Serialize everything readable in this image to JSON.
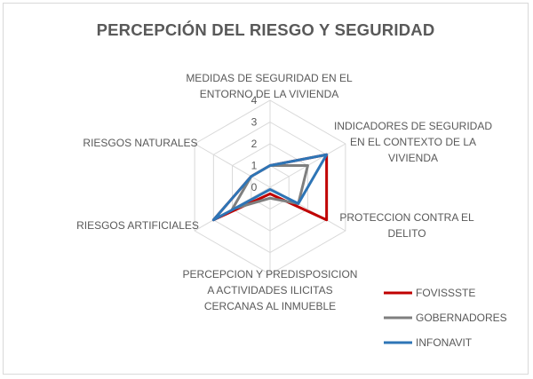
{
  "chart_data": {
    "type": "radar",
    "title": "PERCEPCIÓN DEL RIESGO Y SEGURIDAD",
    "categories": [
      [
        "MEDIDAS DE SEGURIDAD EN EL",
        "ENTORNO DE LA VIVIENDA"
      ],
      [
        "INDICADORES DE SEGURIDAD",
        "EN EL CONTEXTO DE LA",
        "VIVIENDA"
      ],
      [
        "PROTECCION CONTRA EL",
        "DELITO"
      ],
      [
        "PERCEPCION Y PREDISPOSICION",
        "A ACTIVIDADES ILICITAS",
        "CERCANAS AL INMUEBLE"
      ],
      [
        "RIESGOS ARTIFICIALES"
      ],
      [
        "RIESGOS NATURALES"
      ]
    ],
    "rlim": [
      0,
      4
    ],
    "ticks": [
      "0",
      "1",
      "2",
      "3",
      "4"
    ],
    "grid": true,
    "legend_position": "bottom-right",
    "series": [
      {
        "name": "FOVISSSTE",
        "color": "#c00000",
        "values": [
          1,
          3,
          3,
          0.3,
          3,
          1
        ]
      },
      {
        "name": "GOBERNADORES",
        "color": "#7f7f7f",
        "values": [
          1,
          2,
          1.5,
          0.5,
          2,
          1
        ]
      },
      {
        "name": "INFONAVIT",
        "color": "#2e75b6",
        "values": [
          1,
          3,
          1.5,
          0.1,
          3,
          1
        ]
      }
    ]
  }
}
